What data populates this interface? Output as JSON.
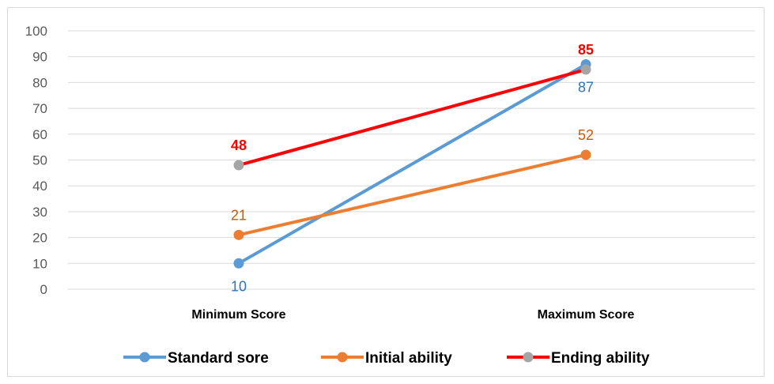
{
  "chart_data": {
    "type": "line",
    "categories": [
      "Minimum Score",
      "Maximum Score"
    ],
    "ylim": [
      0,
      100
    ],
    "yticks": [
      0,
      10,
      20,
      30,
      40,
      50,
      60,
      70,
      80,
      90,
      100
    ],
    "grid": true,
    "legend_position": "bottom",
    "series": [
      {
        "name": "Standard sore",
        "values": [
          10,
          87
        ],
        "color": "#5b9bd5",
        "marker_color": "#5b9bd5",
        "label_color": "#2e75b6",
        "label_position": "below",
        "label_bold": false
      },
      {
        "name": "Initial ability",
        "values": [
          21,
          52
        ],
        "color": "#ed7d31",
        "marker_color": "#ed7d31",
        "label_color": "#c55a11",
        "label_position": "above",
        "label_bold": false
      },
      {
        "name": "Ending ability",
        "values": [
          48,
          85
        ],
        "color": "#ff0000",
        "marker_color": "#a5a5a5",
        "label_color": "#ff0000",
        "label_position": "above",
        "label_bold": true
      }
    ]
  }
}
